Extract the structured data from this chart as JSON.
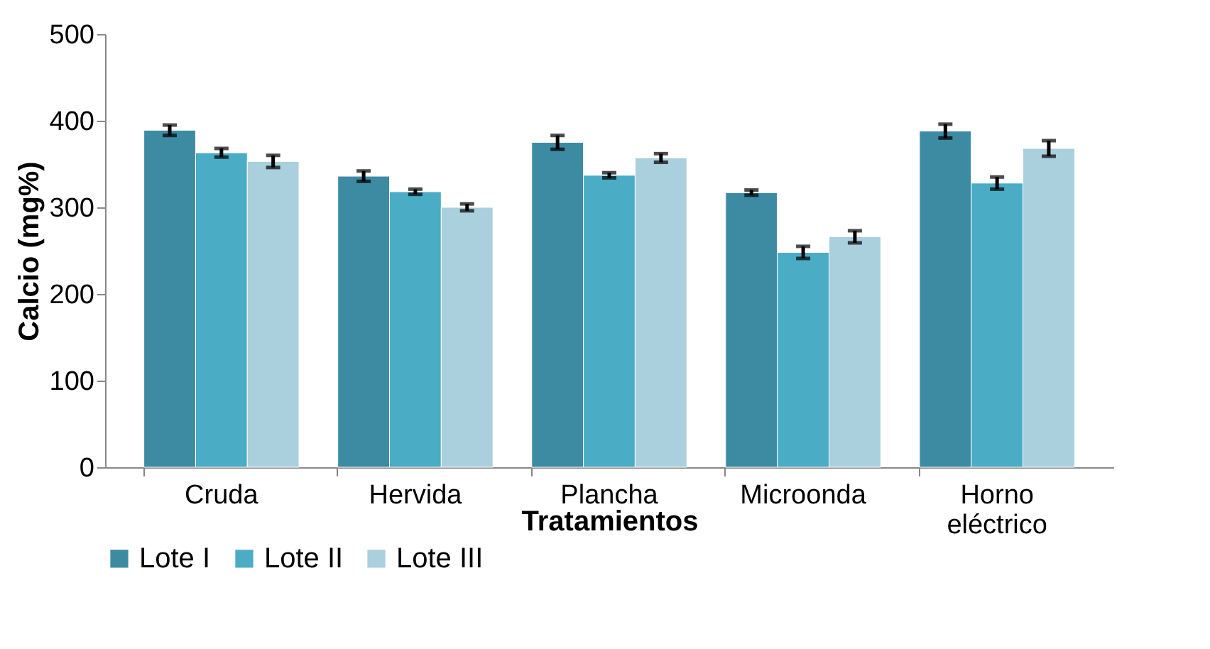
{
  "chart_data": {
    "type": "bar",
    "xlabel": "Tratamientos",
    "ylabel": "Calcio (mg%)",
    "categories": [
      "Cruda",
      "Hervida",
      "Plancha",
      "Microonda",
      "Horno eléctrico"
    ],
    "series": [
      {
        "name": "Lote I",
        "color": "#3d8ba3",
        "values": [
          389,
          336,
          375,
          317,
          388
        ],
        "errors": [
          6,
          6,
          8,
          3,
          8
        ]
      },
      {
        "name": "Lote II",
        "color": "#4bacc6",
        "values": [
          363,
          318,
          337,
          248,
          328
        ],
        "errors": [
          5,
          3,
          3,
          7,
          7
        ]
      },
      {
        "name": "Lote III",
        "color": "#aacfdd",
        "values": [
          353,
          300,
          357,
          266,
          368
        ],
        "errors": [
          7,
          4,
          5,
          7,
          9
        ]
      }
    ],
    "ylim": [
      0,
      500
    ],
    "yticks": [
      0,
      100,
      200,
      300,
      400,
      500
    ],
    "grid": false,
    "legend": "bottom"
  }
}
